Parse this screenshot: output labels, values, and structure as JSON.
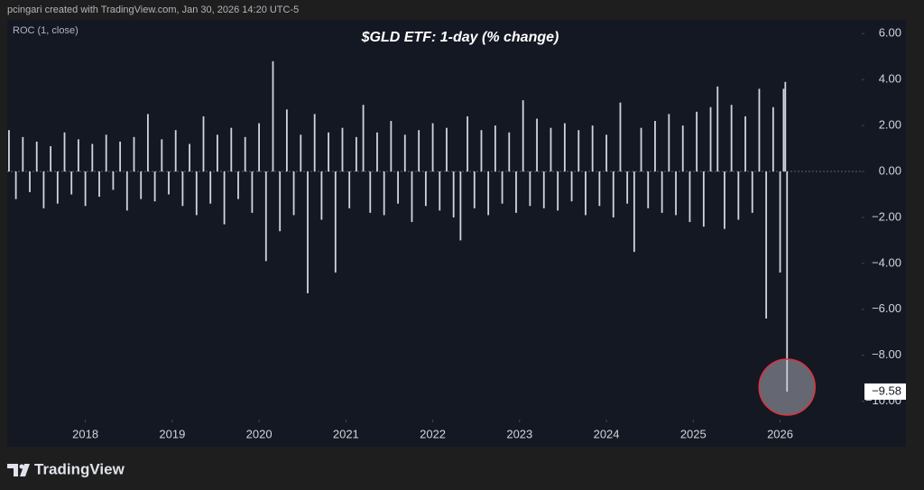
{
  "header": "pcingari created with TradingView.com, Jan 30, 2026 14:20 UTC-5",
  "footer": "TradingView",
  "chart_data": {
    "type": "bar",
    "title": "$GLD ETF: 1-day (% change)",
    "indicator": "ROC (1, close)",
    "color": "#d1d4dc",
    "x": [
      2017.12,
      2017.2,
      2017.28,
      2017.36,
      2017.44,
      2017.52,
      2017.6,
      2017.68,
      2017.76,
      2017.84,
      2017.92,
      2018,
      2018.08,
      2018.16,
      2018.24,
      2018.32,
      2018.4,
      2018.48,
      2018.56,
      2018.64,
      2018.72,
      2018.8,
      2018.88,
      2018.96,
      2019.04,
      2019.12,
      2019.2,
      2019.28,
      2019.36,
      2019.44,
      2019.52,
      2019.6,
      2019.68,
      2019.76,
      2019.84,
      2019.92,
      2020,
      2020.08,
      2020.16,
      2020.24,
      2020.32,
      2020.4,
      2020.48,
      2020.56,
      2020.64,
      2020.72,
      2020.8,
      2020.88,
      2020.96,
      2021.04,
      2021.12,
      2021.2,
      2021.28,
      2021.36,
      2021.44,
      2021.52,
      2021.6,
      2021.68,
      2021.76,
      2021.84,
      2021.92,
      2022,
      2022.08,
      2022.16,
      2022.24,
      2022.32,
      2022.4,
      2022.48,
      2022.56,
      2022.64,
      2022.72,
      2022.8,
      2022.88,
      2022.96,
      2023.04,
      2023.12,
      2023.2,
      2023.28,
      2023.36,
      2023.44,
      2023.52,
      2023.6,
      2023.68,
      2023.76,
      2023.84,
      2023.92,
      2024,
      2024.08,
      2024.16,
      2024.24,
      2024.32,
      2024.4,
      2024.48,
      2024.56,
      2024.64,
      2024.72,
      2024.8,
      2024.88,
      2024.96,
      2025.04,
      2025.12,
      2025.2,
      2025.28,
      2025.36,
      2025.44,
      2025.52,
      2025.6,
      2025.68,
      2025.76,
      2025.84,
      2025.92,
      2026,
      2026.04,
      2026.06,
      2026.08
    ],
    "values": [
      1.8,
      -1.2,
      1.5,
      -0.9,
      1.3,
      -1.6,
      1.1,
      -1.4,
      1.7,
      -1.0,
      1.4,
      -1.5,
      1.2,
      -1.1,
      1.6,
      -0.8,
      1.3,
      -1.7,
      1.5,
      -1.2,
      2.5,
      -1.3,
      1.4,
      -1.0,
      1.8,
      -1.5,
      1.2,
      -1.9,
      2.4,
      -1.4,
      1.6,
      -2.3,
      1.9,
      -1.2,
      1.5,
      -1.8,
      2.1,
      -3.9,
      4.8,
      -2.6,
      2.7,
      -1.9,
      1.6,
      -5.3,
      2.5,
      -2.1,
      1.7,
      -4.4,
      1.9,
      -1.6,
      1.5,
      2.9,
      -1.8,
      1.7,
      -1.9,
      2.2,
      -1.4,
      1.6,
      -2.2,
      1.8,
      -1.5,
      2.1,
      -1.7,
      1.9,
      -2.0,
      -3.0,
      2.4,
      -1.6,
      1.8,
      -1.9,
      2.0,
      -1.4,
      1.7,
      -1.8,
      3.1,
      -1.5,
      2.3,
      -1.6,
      1.9,
      -1.7,
      2.1,
      -1.3,
      1.8,
      -1.9,
      2.0,
      -1.5,
      1.6,
      -2.0,
      3.0,
      -1.4,
      -3.5,
      1.9,
      -1.6,
      2.2,
      -1.8,
      2.5,
      -1.9,
      2.0,
      -2.2,
      2.6,
      -2.4,
      2.8,
      3.7,
      -2.5,
      2.9,
      -2.1,
      2.4,
      -1.8,
      3.6,
      -6.4,
      2.8,
      -4.4,
      3.6,
      3.9,
      -9.58
    ],
    "last_value": {
      "value": -9.58,
      "label": "−9.58"
    },
    "xlim": [
      2017.1,
      2026.94
    ],
    "xticks": [
      2018,
      2019,
      2020,
      2021,
      2022,
      2023,
      2024,
      2025,
      2026
    ],
    "ylim": [
      -10.8,
      6.6
    ],
    "yticks": [
      {
        "value": 6,
        "label": "6.00"
      },
      {
        "value": 4,
        "label": "4.00"
      },
      {
        "value": 2,
        "label": "2.00"
      },
      {
        "value": 0,
        "label": "0.00"
      },
      {
        "value": -2,
        "label": "−2.00"
      },
      {
        "value": -4,
        "label": "−4.00"
      },
      {
        "value": -6,
        "label": "−6.00"
      },
      {
        "value": -8,
        "label": "−8.00"
      },
      {
        "value": -10,
        "label": "−10.00"
      }
    ],
    "zero_line": true
  }
}
